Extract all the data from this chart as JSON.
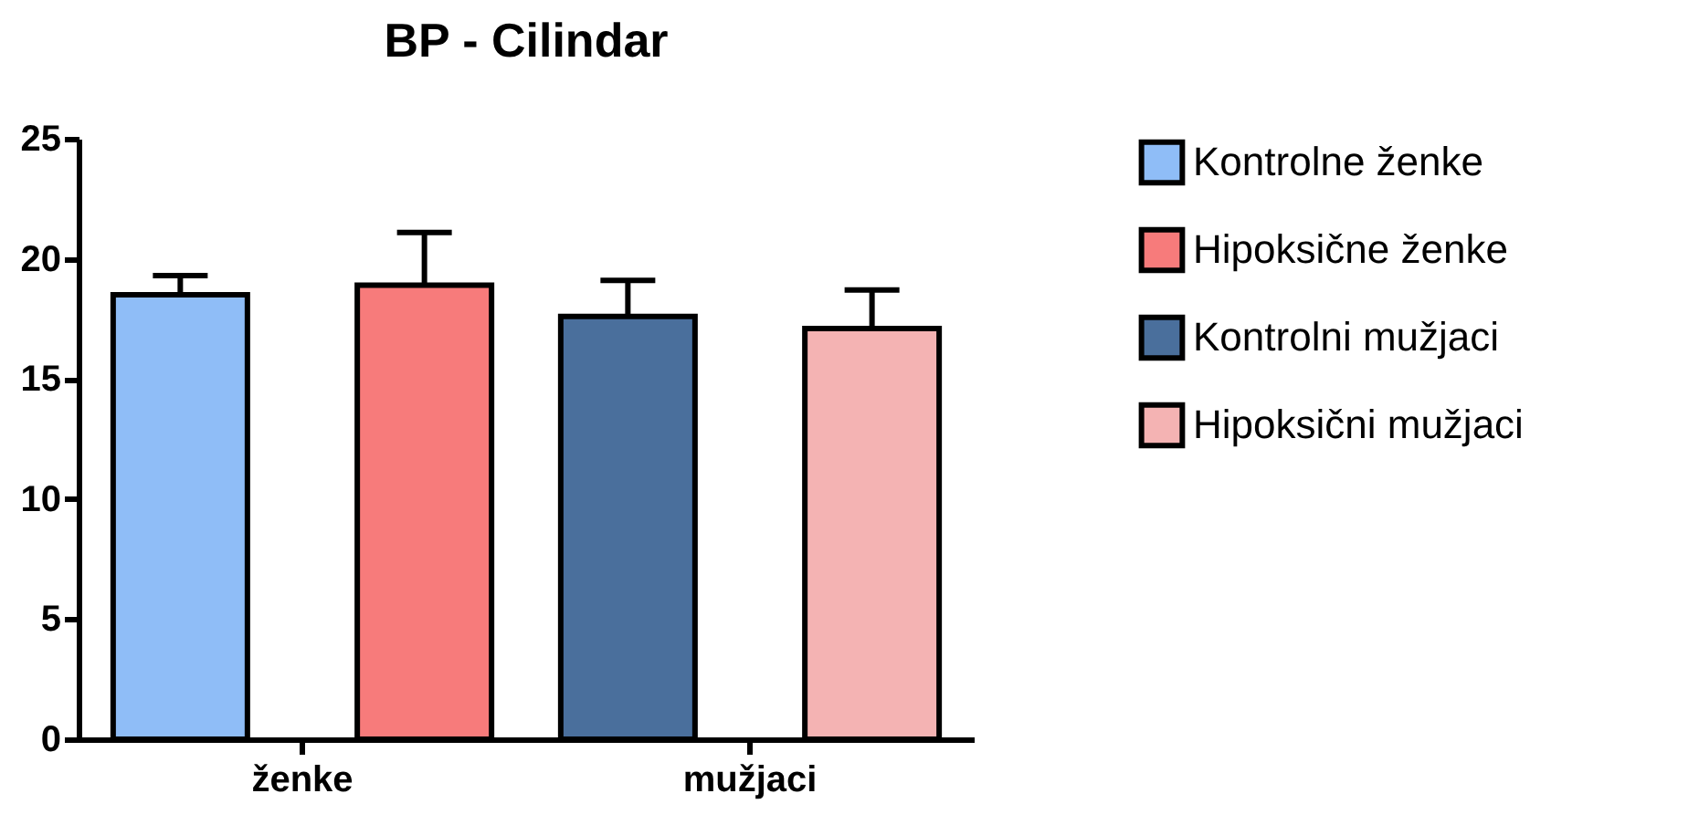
{
  "chart_data": {
    "type": "bar",
    "title": "BP - Cilindar",
    "categories": [
      "ženke",
      "mužjaci"
    ],
    "series": [
      {
        "name": "Kontrolne ženke",
        "color": "#8fbdf7",
        "values": [
          18.5,
          null
        ],
        "errors": [
          0.8,
          null
        ]
      },
      {
        "name": "Hipoksične ženke",
        "color": "#f77b7b",
        "values": [
          18.9,
          null
        ],
        "errors": [
          2.2,
          null
        ]
      },
      {
        "name": "Kontrolni mužjaci",
        "color": "#4a6f9c",
        "values": [
          null,
          17.6
        ],
        "errors": [
          null,
          1.5
        ]
      },
      {
        "name": "Hipoksični mužjaci",
        "color": "#f4b3b3",
        "values": [
          null,
          17.1
        ],
        "errors": [
          null,
          1.6
        ]
      }
    ],
    "ylim": [
      0,
      25
    ],
    "yticks": [
      0,
      5,
      10,
      15,
      20,
      25
    ],
    "legend": "right"
  }
}
